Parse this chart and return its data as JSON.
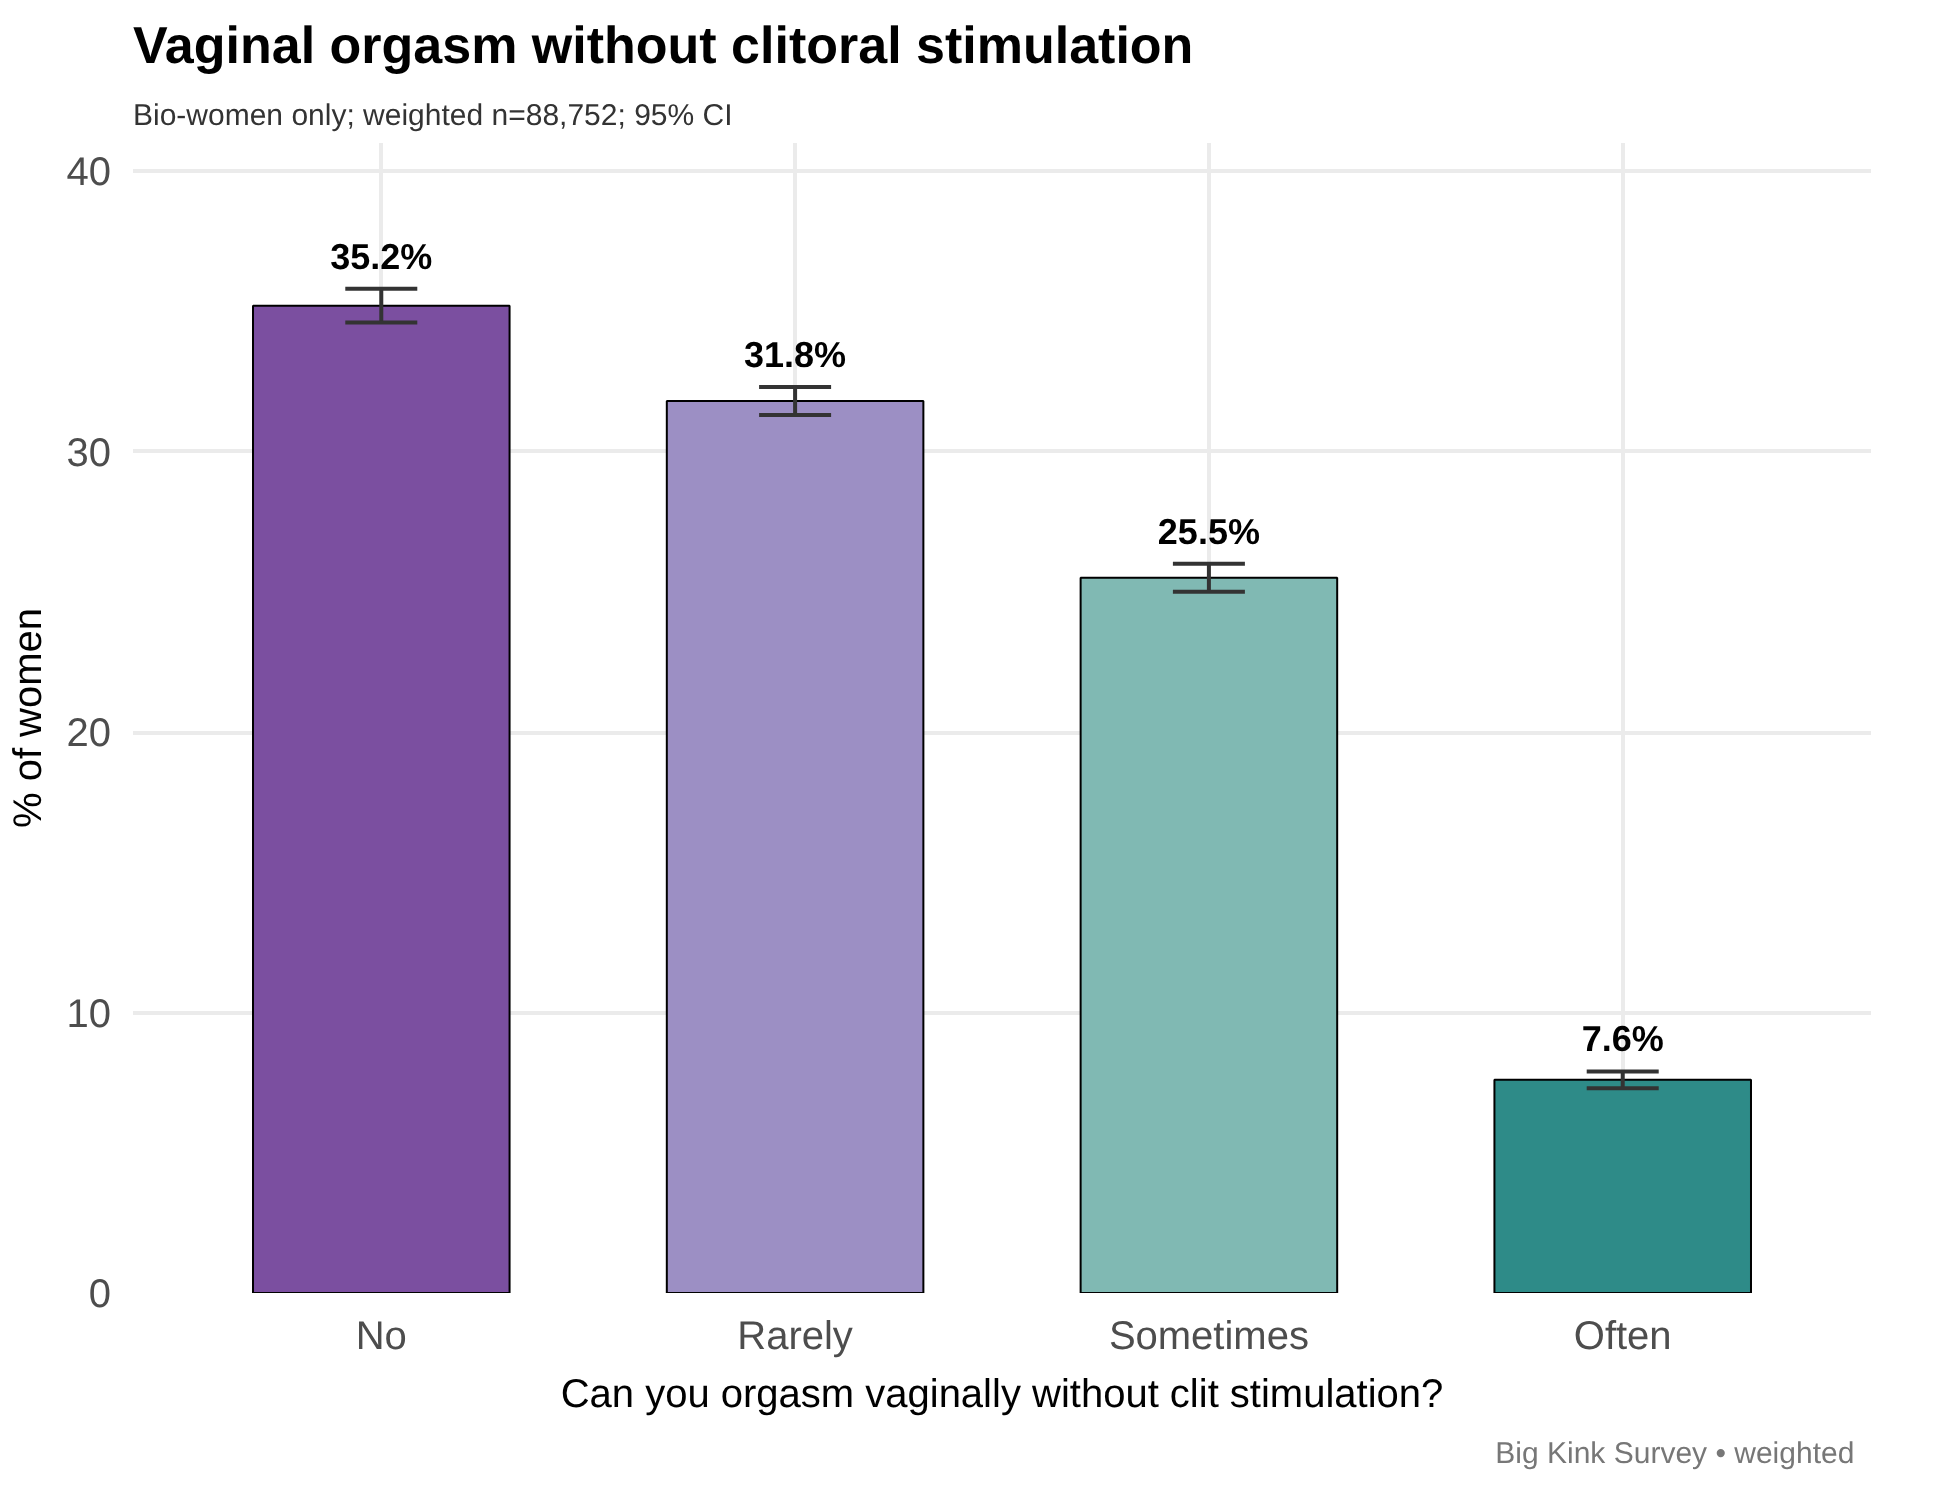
{
  "chart_data": {
    "type": "bar",
    "title": "Vaginal orgasm without clitoral stimulation",
    "subtitle": "Bio-women only; weighted n=88,752; 95% CI",
    "xlabel": "Can you orgasm vaginally without clit stimulation?",
    "ylabel": "% of women",
    "categories": [
      "No",
      "Rarely",
      "Sometimes",
      "Often"
    ],
    "values": [
      35.2,
      31.8,
      25.5,
      7.6
    ],
    "colors": [
      "#7b4fa0",
      "#9c8fc4",
      "#80b9b3",
      "#2e8b88"
    ],
    "errors": [
      0.6,
      0.5,
      0.5,
      0.3
    ],
    "value_labels": [
      "35.2%",
      "31.8%",
      "25.5%",
      "7.6%"
    ],
    "ylim": [
      0,
      41
    ],
    "yticks": [
      0,
      10,
      20,
      30,
      40
    ],
    "grid": true,
    "annotations": [
      "Big Kink Survey  •  weighted"
    ]
  }
}
